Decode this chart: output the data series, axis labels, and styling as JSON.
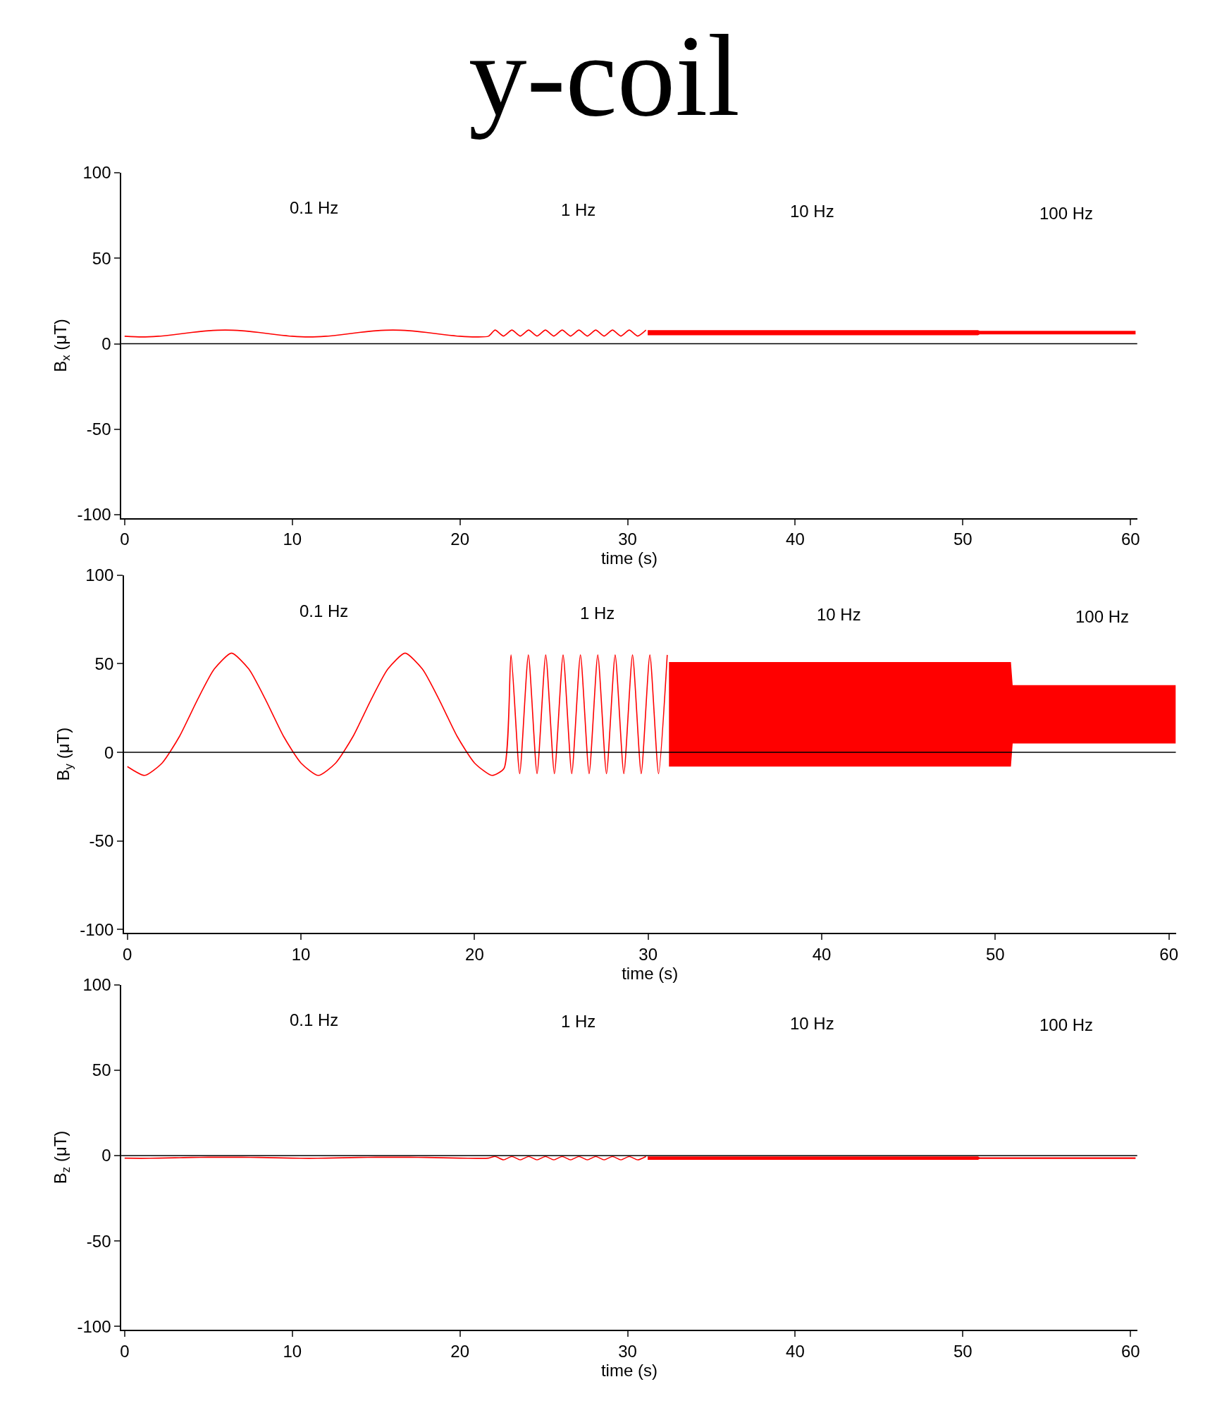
{
  "chart_data": [
    {
      "type": "line",
      "title": "y-coil",
      "xlabel": "time (s)",
      "ylabel": "B$_{x}$ (μT)",
      "annotations": [
        "0.1 Hz",
        "1 Hz",
        "10 Hz",
        "100 Hz"
      ],
      "series": [
        {
          "color": "#ff0000",
          "x": [
            0,
            1,
            2,
            3,
            4,
            5,
            6,
            7,
            8,
            9,
            10,
            11,
            12,
            13,
            14,
            15,
            16,
            17,
            18,
            19,
            20,
            21,
            21.7,
            22.1,
            22.6,
            23.1,
            23.6,
            24.1,
            24.6,
            25.1,
            25.6,
            26.1,
            26.6,
            27.1,
            27.6,
            28.1,
            28.6,
            29.1,
            29.6,
            30.1,
            30.6,
            31.1,
            31.2,
            50.9,
            51.0,
            60.3
          ],
          "values": [
            4.4,
            4,
            4.4,
            5.4,
            6.6,
            7.6,
            8,
            7.6,
            6.6,
            5.4,
            4.4,
            4,
            4.4,
            5.4,
            6.6,
            7.6,
            8,
            7.6,
            6.6,
            5.4,
            4.4,
            4,
            4.4,
            8,
            4.5,
            8,
            4.5,
            8,
            4.5,
            8,
            4.5,
            8,
            4.5,
            8,
            4.5,
            8,
            4.5,
            8,
            4.5,
            8,
            4.5,
            8,
            null,
            null,
            null,
            null
          ],
          "lower": [
            null,
            null,
            null,
            null,
            null,
            null,
            null,
            null,
            null,
            null,
            null,
            null,
            null,
            null,
            null,
            null,
            null,
            null,
            null,
            null,
            null,
            null,
            null,
            null,
            null,
            null,
            null,
            null,
            null,
            null,
            null,
            null,
            null,
            null,
            null,
            null,
            null,
            null,
            null,
            null,
            null,
            null,
            5,
            5,
            5.5,
            5.5
          ],
          "upper": [
            null,
            null,
            null,
            null,
            null,
            null,
            null,
            null,
            null,
            null,
            null,
            null,
            null,
            null,
            null,
            null,
            null,
            null,
            null,
            null,
            null,
            null,
            null,
            null,
            null,
            null,
            null,
            null,
            null,
            null,
            null,
            null,
            null,
            null,
            null,
            null,
            null,
            null,
            null,
            null,
            null,
            null,
            8,
            8,
            7.5,
            7.5
          ]
        }
      ],
      "xlim": [
        -0.2,
        60.4
      ],
      "ylim": [
        -102,
        100
      ],
      "xticks": [
        0,
        10,
        20,
        30,
        40,
        50,
        60
      ],
      "yticks": [
        -100,
        -50,
        0,
        50,
        100
      ],
      "ref_lines": [
        {
          "axis": "y",
          "value": 0,
          "color": "#000000"
        }
      ]
    },
    {
      "type": "line",
      "xlabel": "time (s)",
      "ylabel": "B$_{y}$ (μT)",
      "annotations": [
        "0.1 Hz",
        "1 Hz",
        "10 Hz",
        "100 Hz"
      ],
      "series": [
        {
          "color": "#ff0000",
          "x": [
            0,
            1,
            2,
            3,
            4,
            5,
            6,
            7,
            8,
            9,
            10,
            11,
            12,
            13,
            14,
            15,
            16,
            17,
            18,
            19,
            20,
            21,
            21.7,
            22.1,
            22.6,
            23.1,
            23.6,
            24.1,
            24.6,
            25.1,
            25.6,
            26.1,
            26.6,
            27.1,
            27.6,
            28.1,
            28.6,
            29.1,
            29.6,
            30.1,
            30.6,
            31.1,
            31.2,
            50.9,
            51.0,
            60.4
          ],
          "values": [
            -8,
            -13,
            -6,
            9,
            29,
            47,
            56,
            47,
            29,
            9,
            -6,
            -13,
            -6,
            9,
            29,
            47,
            56,
            47,
            29,
            9,
            -6,
            -13,
            -9,
            55,
            -12,
            55,
            -12,
            55,
            -12,
            55,
            -12,
            55,
            -12,
            55,
            -12,
            55,
            -12,
            55,
            -12,
            55,
            -12,
            55,
            null,
            null,
            null,
            null
          ],
          "lower": [
            null,
            null,
            null,
            null,
            null,
            null,
            null,
            null,
            null,
            null,
            null,
            null,
            null,
            null,
            null,
            null,
            null,
            null,
            null,
            null,
            null,
            null,
            null,
            null,
            null,
            null,
            null,
            null,
            null,
            null,
            null,
            null,
            null,
            null,
            null,
            null,
            null,
            null,
            null,
            null,
            null,
            null,
            -8,
            -8,
            5,
            5
          ],
          "upper": [
            null,
            null,
            null,
            null,
            null,
            null,
            null,
            null,
            null,
            null,
            null,
            null,
            null,
            null,
            null,
            null,
            null,
            null,
            null,
            null,
            null,
            null,
            null,
            null,
            null,
            null,
            null,
            null,
            null,
            null,
            null,
            null,
            null,
            null,
            null,
            null,
            null,
            null,
            null,
            null,
            null,
            null,
            51,
            51,
            38,
            38
          ]
        }
      ],
      "xlim": [
        -0.2,
        60.4
      ],
      "ylim": [
        -102,
        100
      ],
      "xticks": [
        0,
        10,
        20,
        30,
        40,
        50,
        60
      ],
      "yticks": [
        -100,
        -50,
        0,
        50,
        100
      ],
      "ref_lines": [
        {
          "axis": "y",
          "value": 0,
          "color": "#000000"
        }
      ]
    },
    {
      "type": "line",
      "xlabel": "time (s)",
      "ylabel": "B$_{z}$ (μT)",
      "annotations": [
        "0.1 Hz",
        "1 Hz",
        "10 Hz",
        "100 Hz"
      ],
      "series": [
        {
          "color": "#ff0000",
          "x": [
            0,
            1,
            2,
            3,
            4,
            5,
            6,
            7,
            8,
            9,
            10,
            11,
            12,
            13,
            14,
            15,
            16,
            17,
            18,
            19,
            20,
            21,
            21.7,
            22.1,
            22.6,
            23.1,
            23.6,
            24.1,
            24.6,
            25.1,
            25.6,
            26.1,
            26.6,
            27.1,
            27.6,
            28.1,
            28.6,
            29.1,
            29.6,
            30.1,
            30.6,
            31.1,
            31.2,
            50.9,
            51.0,
            60.3
          ],
          "values": [
            -1.5,
            -1.6,
            -1.5,
            -1.3,
            -1.1,
            -1,
            -1,
            -1,
            -1.1,
            -1.3,
            -1.5,
            -1.6,
            -1.5,
            -1.3,
            -1.1,
            -1,
            -1,
            -1,
            -1.1,
            -1.3,
            -1.5,
            -1.6,
            -1.5,
            -0.5,
            -2.5,
            -0.5,
            -2.5,
            -0.5,
            -2.5,
            -0.5,
            -2.5,
            -0.5,
            -2.5,
            -0.5,
            -2.5,
            -0.5,
            -2.5,
            -0.5,
            -2.5,
            -0.5,
            -2.5,
            -0.5,
            null,
            null,
            null,
            null
          ],
          "lower": [
            null,
            null,
            null,
            null,
            null,
            null,
            null,
            null,
            null,
            null,
            null,
            null,
            null,
            null,
            null,
            null,
            null,
            null,
            null,
            null,
            null,
            null,
            null,
            null,
            null,
            null,
            null,
            null,
            null,
            null,
            null,
            null,
            null,
            null,
            null,
            null,
            null,
            null,
            null,
            null,
            null,
            null,
            -2.5,
            -2.5,
            -2,
            -2
          ],
          "upper": [
            null,
            null,
            null,
            null,
            null,
            null,
            null,
            null,
            null,
            null,
            null,
            null,
            null,
            null,
            null,
            null,
            null,
            null,
            null,
            null,
            null,
            null,
            null,
            null,
            null,
            null,
            null,
            null,
            null,
            null,
            null,
            null,
            null,
            null,
            null,
            null,
            null,
            null,
            null,
            null,
            null,
            null,
            -0.5,
            -0.5,
            -1,
            -1
          ]
        }
      ],
      "xlim": [
        -0.2,
        60.4
      ],
      "ylim": [
        -102,
        100
      ],
      "xticks": [
        0,
        10,
        20,
        30,
        40,
        50,
        60
      ],
      "yticks": [
        -100,
        -50,
        0,
        50,
        100
      ],
      "ref_lines": [
        {
          "axis": "y",
          "value": 0,
          "color": "#000000"
        }
      ]
    }
  ]
}
